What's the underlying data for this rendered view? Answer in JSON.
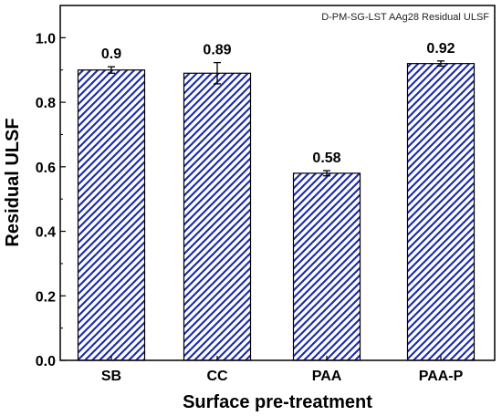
{
  "chart_data": {
    "type": "bar",
    "title": "D-PM-SG-LST AAg28 Residual ULSF",
    "xlabel": "Surface pre-treatment",
    "ylabel": "Residual ULSF",
    "categories": [
      "SB",
      "CC",
      "PAA",
      "PAA-P"
    ],
    "values": [
      0.9,
      0.89,
      0.58,
      0.92
    ],
    "value_labels": [
      "0.9",
      "0.89",
      "0.58",
      "0.92"
    ],
    "errors": [
      0.01,
      0.033,
      0.008,
      0.008
    ],
    "ylim": [
      0,
      1.1
    ],
    "yticks": [
      0.0,
      0.2,
      0.4,
      0.6,
      0.8,
      1.0
    ],
    "ytick_labels": [
      "0.0",
      "0.2",
      "0.4",
      "0.6",
      "0.8",
      "1.0"
    ],
    "grid": false,
    "legend": "none",
    "bar_fill": "hatched",
    "colors": {
      "hatch": "#1f2ea8",
      "bar_border": "#000000",
      "axis": "#000000",
      "background": "#ffffff"
    }
  }
}
